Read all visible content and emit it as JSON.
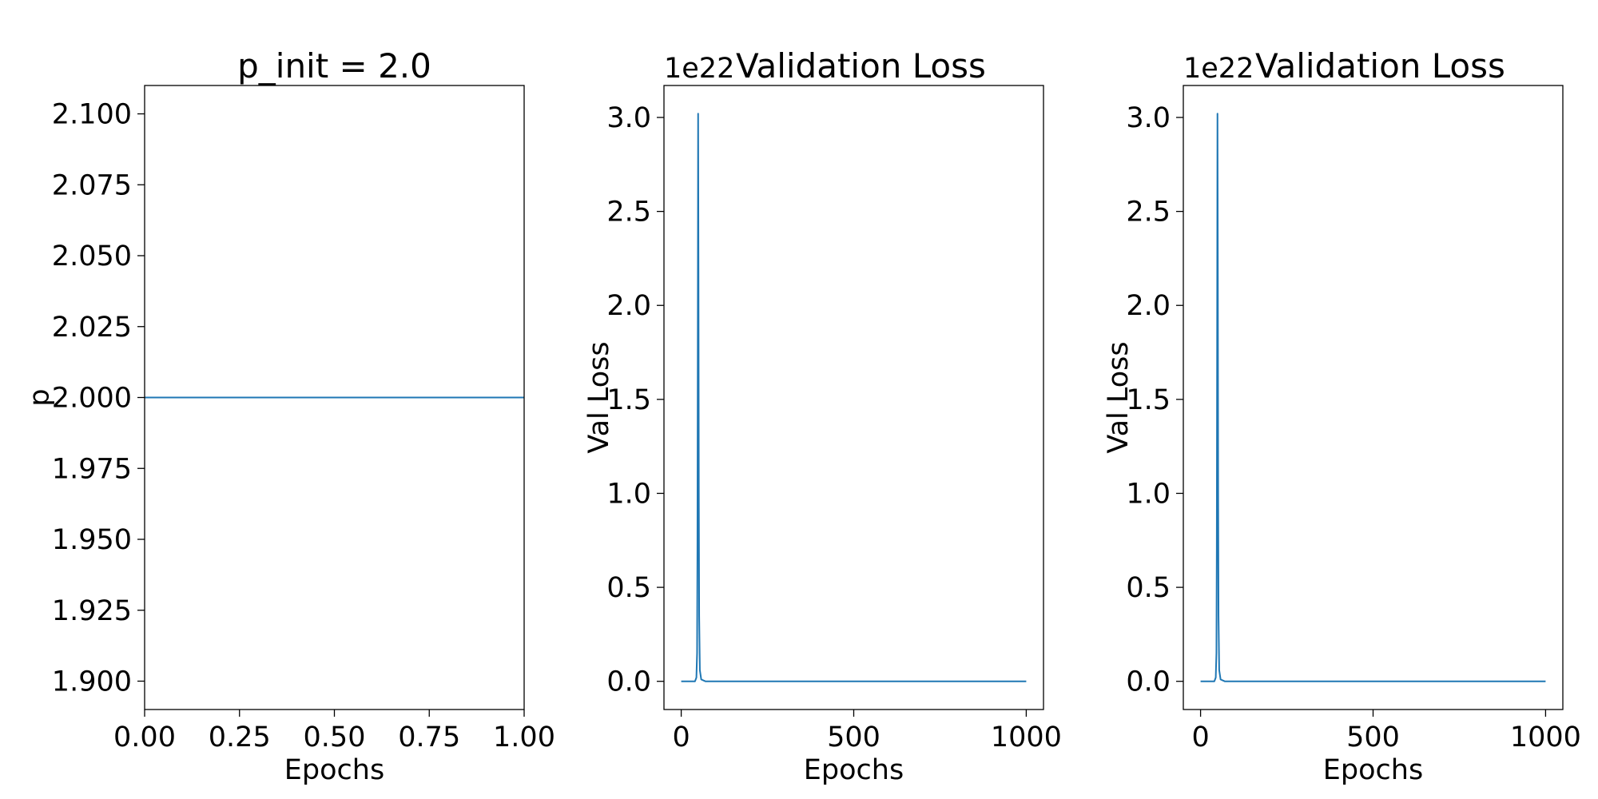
{
  "chart_data": [
    {
      "type": "line",
      "title": "p_init = 2.0",
      "xlabel": "Epochs",
      "ylabel": "p",
      "xlim": [
        0,
        1
      ],
      "ylim": [
        1.89,
        2.11
      ],
      "xticks": [
        0,
        0.25,
        0.5,
        0.75,
        1
      ],
      "xtick_labels": [
        "0.00",
        "0.25",
        "0.50",
        "0.75",
        "1.00"
      ],
      "yticks": [
        1.9,
        1.925,
        1.95,
        1.975,
        2.0,
        2.025,
        2.05,
        2.075,
        2.1
      ],
      "ytick_labels": [
        "1.900",
        "1.925",
        "1.950",
        "1.975",
        "2.000",
        "2.025",
        "2.050",
        "2.075",
        "2.100"
      ],
      "offset_text": "",
      "grid": false,
      "series": [
        {
          "color": "#1f77b4",
          "x": [
            0,
            1
          ],
          "y": [
            2.0,
            2.0
          ]
        }
      ]
    },
    {
      "type": "line",
      "title": "Validation Loss",
      "xlabel": "Epochs",
      "ylabel": "Val Loss",
      "xlim": [
        -50,
        1050
      ],
      "ylim": [
        -0.15,
        3.17
      ],
      "xticks": [
        0,
        500,
        1000
      ],
      "xtick_labels": [
        "0",
        "500",
        "1000"
      ],
      "yticks": [
        0,
        0.5,
        1.0,
        1.5,
        2.0,
        2.5,
        3.0
      ],
      "ytick_labels": [
        "0.0",
        "0.5",
        "1.0",
        "1.5",
        "2.0",
        "2.5",
        "3.0"
      ],
      "offset_text": "1e22",
      "y_scale_factor": "1e22",
      "grid": false,
      "series": [
        {
          "color": "#1f77b4",
          "x": [
            0,
            40,
            44,
            46,
            47,
            48,
            49,
            50,
            51,
            52,
            54,
            58,
            70,
            1000
          ],
          "y": [
            0,
            0,
            0.02,
            0.15,
            0.7,
            1.8,
            3.02,
            2.2,
            1.0,
            0.35,
            0.06,
            0.01,
            0,
            0
          ]
        }
      ]
    },
    {
      "type": "line",
      "title": "Validation Loss",
      "xlabel": "Epochs",
      "ylabel": "Val Loss",
      "xlim": [
        -50,
        1050
      ],
      "ylim": [
        -0.15,
        3.17
      ],
      "xticks": [
        0,
        500,
        1000
      ],
      "xtick_labels": [
        "0",
        "500",
        "1000"
      ],
      "yticks": [
        0,
        0.5,
        1.0,
        1.5,
        2.0,
        2.5,
        3.0
      ],
      "ytick_labels": [
        "0.0",
        "0.5",
        "1.0",
        "1.5",
        "2.0",
        "2.5",
        "3.0"
      ],
      "offset_text": "1e22",
      "y_scale_factor": "1e22",
      "grid": false,
      "series": [
        {
          "color": "#1f77b4",
          "x": [
            0,
            40,
            44,
            46,
            47,
            48,
            49,
            50,
            51,
            52,
            54,
            58,
            70,
            1000
          ],
          "y": [
            0,
            0,
            0.02,
            0.15,
            0.7,
            1.8,
            3.02,
            2.2,
            1.0,
            0.35,
            0.06,
            0.01,
            0,
            0
          ]
        }
      ]
    }
  ]
}
